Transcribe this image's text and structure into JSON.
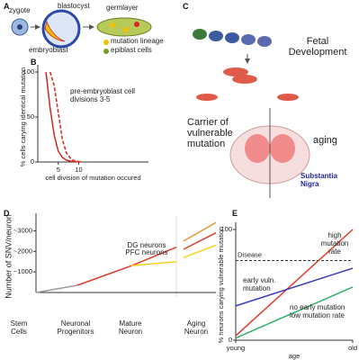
{
  "panel_labels": [
    "A",
    "B",
    "C",
    "D",
    "E"
  ],
  "diagram_a": {
    "labels": [
      "zygote",
      "blastocyst",
      "germlayer",
      "embryoblast"
    ],
    "legend": [
      {
        "label": "mutation lineage",
        "color": "#f2c200"
      },
      {
        "label": "epiblast cells",
        "color": "#7a9a2a"
      }
    ]
  },
  "diagram_c": {
    "title": "Fetal Development",
    "labels": [
      "Carrier of vulnerable mutation",
      "aging",
      "Substantia Nigra"
    ]
  },
  "diagram_d": {
    "stages": [
      "Stem Cells",
      "Neuronal Progenitors",
      "Mature Neuron",
      "Aging Neuron"
    ]
  },
  "chart_data": [
    {
      "type": "line",
      "ylabel": "% cells carying identical mutation",
      "xlabel": "cell division of mutation occured",
      "annotation": "pre-embryoblast cell divisions 3-5",
      "xlim": [
        0,
        27
      ],
      "ylim": [
        0,
        100
      ],
      "xticks": [
        5,
        10
      ],
      "yticks": [
        0,
        50,
        100
      ],
      "series": [
        {
          "color": "#d7261e",
          "dash": false,
          "x": [
            2,
            3,
            4,
            5,
            6,
            7,
            8,
            10
          ],
          "values": [
            100,
            60,
            30,
            12,
            5,
            2,
            1,
            0
          ]
        },
        {
          "color": "#d7261e",
          "dash": true,
          "x": [
            3,
            4,
            5,
            6,
            7,
            8,
            9,
            11
          ],
          "values": [
            100,
            85,
            55,
            25,
            10,
            4,
            1,
            0
          ]
        }
      ]
    },
    {
      "type": "line",
      "ylabel": "Number of SNV/neuron",
      "xlim": [
        0,
        10
      ],
      "ylim": [
        0,
        3500
      ],
      "yticks": [
        {
          "value": 1000,
          "label": "~1000"
        },
        {
          "value": 2000,
          "label": "~2000"
        },
        {
          "value": 3000,
          "label": "~3000"
        }
      ],
      "series": [
        {
          "color": "#9a9a9a",
          "x": [
            0,
            2.3
          ],
          "values": [
            0,
            350
          ]
        },
        {
          "name": "DG neurons",
          "color": "#e03a2a",
          "x": [
            2.3,
            5.3,
            7.8
          ],
          "values": [
            350,
            1300,
            2200
          ]
        },
        {
          "name": "PFC neurons",
          "color": "#f5d020",
          "x": [
            5.3,
            7.8
          ],
          "values": [
            1300,
            1500
          ]
        },
        {
          "color": "#e8963a",
          "x": [
            8.2,
            10
          ],
          "values": [
            2500,
            3400
          ]
        },
        {
          "color": "#e03a2a",
          "x": [
            8.2,
            10
          ],
          "values": [
            2100,
            2900
          ]
        },
        {
          "color": "#f5d020",
          "x": [
            8.2,
            10
          ],
          "values": [
            1700,
            2300
          ]
        }
      ]
    },
    {
      "type": "line",
      "xlabel": "age",
      "ylabel": "% neurons carying vulnerable mutation",
      "xlim": [
        0,
        1
      ],
      "ylim": [
        0,
        100
      ],
      "xticks": [
        {
          "value": 0,
          "label": "young"
        },
        {
          "value": 1,
          "label": "old"
        }
      ],
      "yticks": [
        0,
        100
      ],
      "threshold": {
        "label": "Disease",
        "value": 72
      },
      "annotations": [
        "high mutation rate",
        "early vuln. mutation",
        "no early mutation low mutation rate"
      ],
      "series": [
        {
          "color": "#e03a2a",
          "x": [
            0,
            1
          ],
          "values": [
            4,
            100
          ]
        },
        {
          "color": "#3a3ab8",
          "x": [
            0,
            1
          ],
          "values": [
            31,
            65
          ]
        },
        {
          "color": "#2fb06a",
          "x": [
            0,
            1
          ],
          "values": [
            2,
            48
          ]
        }
      ]
    }
  ]
}
